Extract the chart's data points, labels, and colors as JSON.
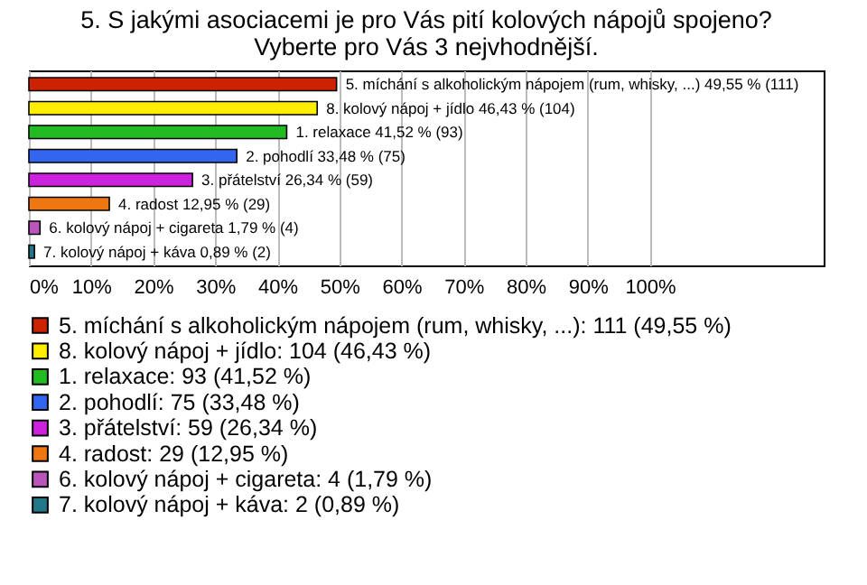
{
  "chart_data": {
    "type": "bar",
    "orientation": "horizontal",
    "title": "5. S jakými asociacemi je pro Vás pití kolových nápojů spojeno?\nVyberte pro Vás 3 nejvhodnější.",
    "categories": [
      null,
      null,
      null,
      null,
      null,
      null,
      null,
      null
    ],
    "series": [
      {
        "name": "5. míchání s alkoholickým nápojem (rum, whisky, ...): 111 (49,55 %)",
        "color": "#cc2200",
        "values": [
          49.55,
          null,
          null,
          null,
          null,
          null,
          null,
          null
        ],
        "value_labels": [
          "5. míchání s alkoholickým nápojem (rum, whisky, ...) 49,55 % (111)",
          null,
          null,
          null,
          null,
          null,
          null,
          null
        ]
      },
      {
        "name": "8. kolový nápoj + jídlo: 104 (46,43 %)",
        "color": "#ffee00",
        "values": [
          null,
          46.43,
          null,
          null,
          null,
          null,
          null,
          null
        ],
        "value_labels": [
          null,
          "8. kolový nápoj + jídlo 46,43 % (104)",
          null,
          null,
          null,
          null,
          null,
          null
        ]
      },
      {
        "name": "1. relaxace: 93 (41,52 %)",
        "color": "#22bb22",
        "values": [
          null,
          null,
          41.52,
          null,
          null,
          null,
          null,
          null
        ],
        "value_labels": [
          null,
          null,
          "1. relaxace 41,52 % (93)",
          null,
          null,
          null,
          null,
          null
        ]
      },
      {
        "name": "2. pohodlí: 75 (33,48 %)",
        "color": "#3366ee",
        "values": [
          null,
          null,
          null,
          33.48,
          null,
          null,
          null,
          null
        ],
        "value_labels": [
          null,
          null,
          null,
          "2. pohodlí 33,48 % (75)",
          null,
          null,
          null,
          null
        ]
      },
      {
        "name": "3. přátelství: 59 (26,34 %)",
        "color": "#cc22dd",
        "values": [
          null,
          null,
          null,
          null,
          26.34,
          null,
          null,
          null
        ],
        "value_labels": [
          null,
          null,
          null,
          null,
          "3. přátelství 26,34 % (59)",
          null,
          null,
          null
        ]
      },
      {
        "name": "4. radost: 29 (12,95 %)",
        "color": "#ee7711",
        "values": [
          null,
          null,
          null,
          null,
          null,
          12.95,
          null,
          null
        ],
        "value_labels": [
          null,
          null,
          null,
          null,
          null,
          "4. radost 12,95 % (29)",
          null,
          null
        ]
      },
      {
        "name": "6. kolový nápoj + cigareta: 4 (1,79 %)",
        "color": "#bb55bb",
        "values": [
          null,
          null,
          null,
          null,
          null,
          null,
          1.79,
          null
        ],
        "value_labels": [
          null,
          null,
          null,
          null,
          null,
          null,
          "6. kolový nápoj + cigareta 1,79 % (4)",
          null
        ]
      },
      {
        "name": "7. kolový nápoj + káva: 2 (0,89 %)",
        "color": "#227788",
        "values": [
          null,
          null,
          null,
          null,
          null,
          null,
          null,
          0.89
        ],
        "value_labels": [
          null,
          null,
          null,
          null,
          null,
          null,
          null,
          "7. kolový nápoj + káva 0,89 % (2)"
        ]
      }
    ],
    "xlim": [
      0,
      128
    ],
    "xticks": [
      {
        "value": 0,
        "label": "0%"
      },
      {
        "value": 10,
        "label": "10%"
      },
      {
        "value": 20,
        "label": "20%"
      },
      {
        "value": 30,
        "label": "30%"
      },
      {
        "value": 40,
        "label": "40%"
      },
      {
        "value": 50,
        "label": "50%"
      },
      {
        "value": 60,
        "label": "60%"
      },
      {
        "value": 70,
        "label": "70%"
      },
      {
        "value": 80,
        "label": "80%"
      },
      {
        "value": 90,
        "label": "90%"
      },
      {
        "value": 100,
        "label": "100%"
      }
    ],
    "grid": "x",
    "legend": "bottom"
  }
}
